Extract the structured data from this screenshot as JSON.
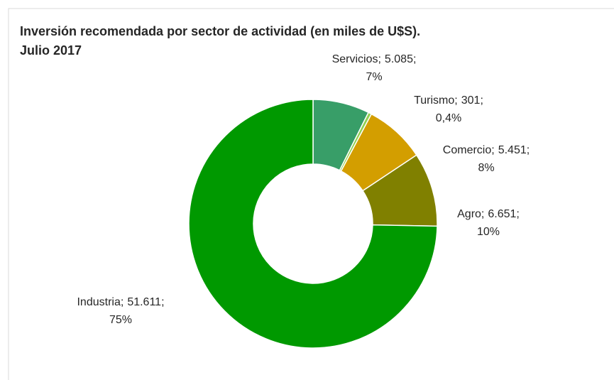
{
  "chart_data": {
    "type": "donut",
    "title": [
      "Inversión recomendada por sector de actividad (en miles de U$S).",
      "Julio 2017"
    ],
    "categories": [
      "Servicios",
      "Turismo",
      "Comercio",
      "Agro",
      "Industria"
    ],
    "values": [
      5085,
      301,
      5451,
      6651,
      51611
    ],
    "value_labels": [
      "5.085",
      "301",
      "5.451",
      "6.651",
      "51.611"
    ],
    "percent_labels": [
      "7%",
      "0,4%",
      "8%",
      "10%",
      "75%"
    ],
    "label_separator": ";",
    "colors": [
      "#389e68",
      "#92d050",
      "#d39e00",
      "#808000",
      "#009900"
    ]
  }
}
